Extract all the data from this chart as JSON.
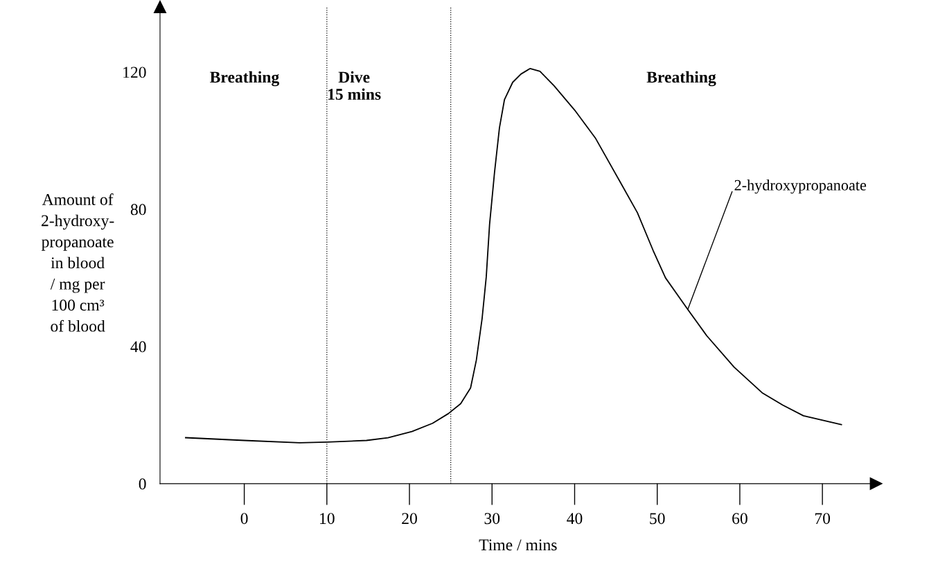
{
  "chart_data": {
    "type": "line",
    "xlabel": "Time / mins",
    "ylabel": "Amount of\n2-hydroxy-\npropanoate\nin blood\n/ mg per\n100 cm³\nof blood",
    "xlim": [
      -10.2,
      76.5
    ],
    "ylim": [
      0,
      139
    ],
    "xticks": [
      0,
      10,
      20,
      30,
      40,
      50,
      60,
      70
    ],
    "yticks": [
      0,
      40,
      80,
      120
    ],
    "series": [
      {
        "name": "2-hydroxypropanoate",
        "color": "#000000",
        "x": [
          -7.1,
          0,
          6.7,
          10,
          14.8,
          17.4,
          20.3,
          22.8,
          24.7,
          26.2,
          27.4,
          28.1,
          28.8,
          29.3,
          29.7,
          30.3,
          30.9,
          31.5,
          32.5,
          33.5,
          34.6,
          35.8,
          37.5,
          40.0,
          42.5,
          45.5,
          47.6,
          49.5,
          51.0,
          53.7,
          56.0,
          59.3,
          62.7,
          65.2,
          67.7,
          72.3
        ],
        "values": [
          13.4,
          12.6,
          11.9,
          12.1,
          12.6,
          13.4,
          15.2,
          17.6,
          20.4,
          23.3,
          27.9,
          36.0,
          48.2,
          60.3,
          75.5,
          90.7,
          103.8,
          111.9,
          117,
          119.4,
          121,
          120.2,
          116,
          108.9,
          100.8,
          88,
          79,
          68,
          60,
          50.8,
          43.1,
          34,
          26.5,
          22.9,
          19.8,
          17.2
        ]
      }
    ],
    "ref_lines": [
      {
        "axis": "x",
        "value": 10,
        "line_style": "dotted",
        "color": "#000000"
      },
      {
        "axis": "x",
        "value": 25,
        "line_style": "dotted",
        "color": "#000000"
      }
    ],
    "annotations": [
      "Breathing",
      "Dive\n15 mins",
      "Breathing"
    ],
    "grid": false,
    "line_style": "solid"
  }
}
